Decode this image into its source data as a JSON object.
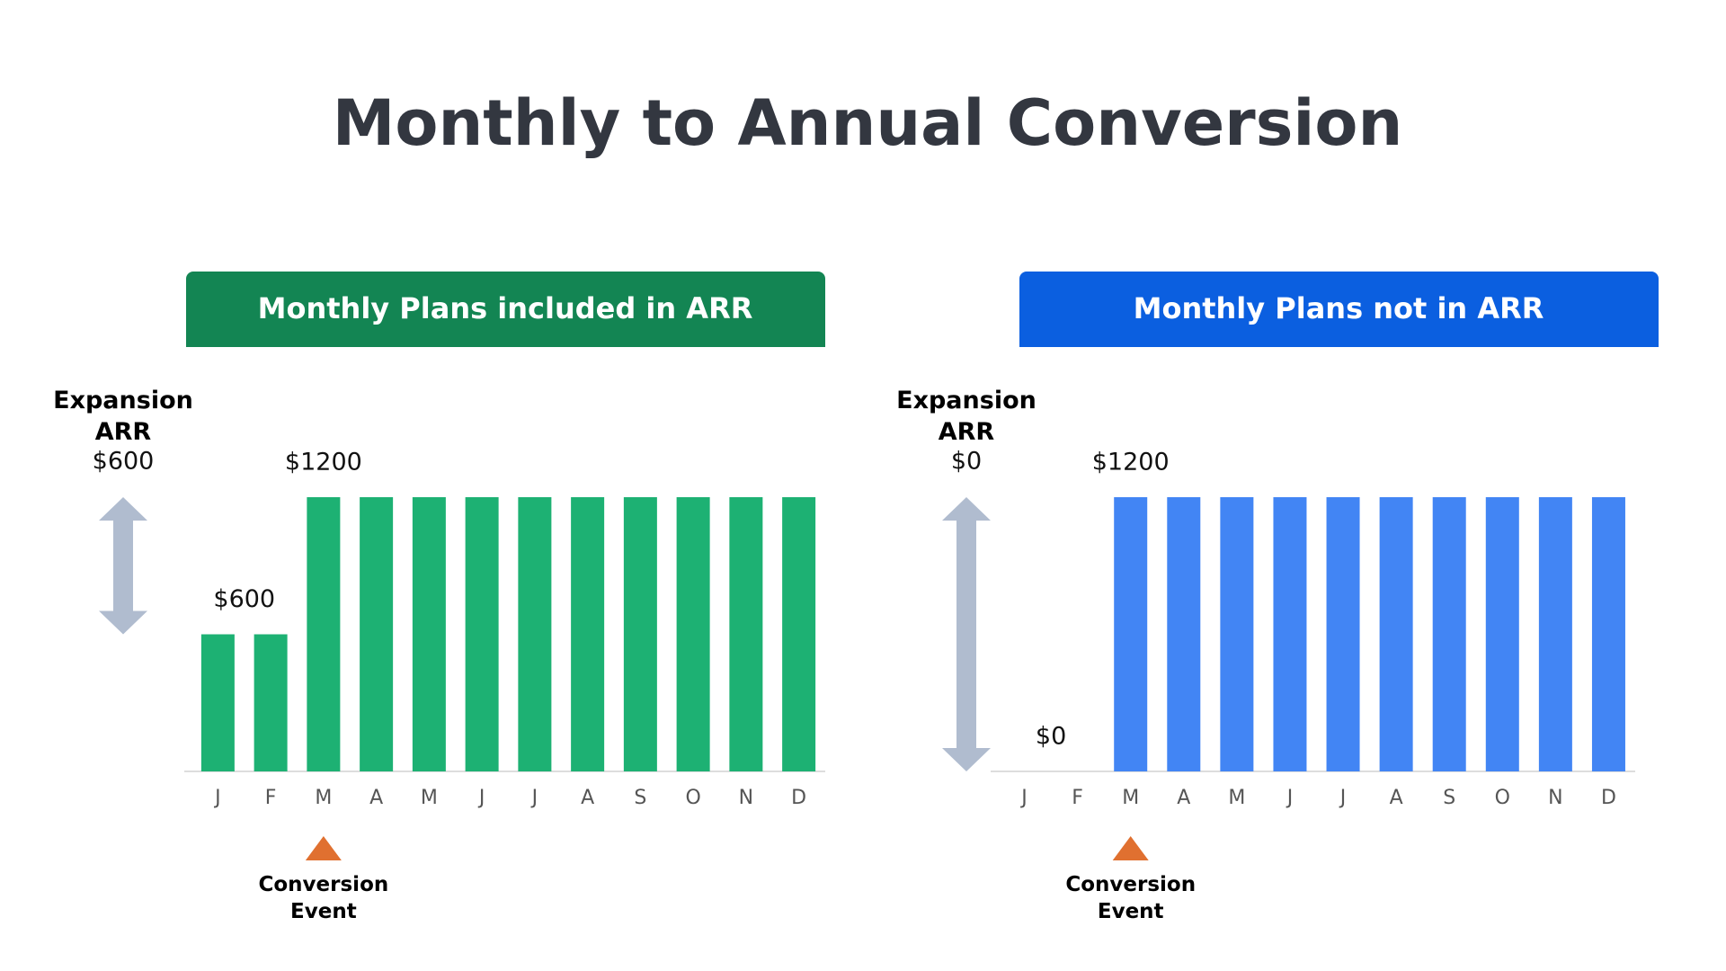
{
  "title": "Monthly to Annual Conversion",
  "chart_data": [
    {
      "type": "bar",
      "title": "Monthly Plans included in ARR",
      "header_color": "#138553",
      "color": "#1db173",
      "categories": [
        "J",
        "F",
        "M",
        "A",
        "M",
        "J",
        "J",
        "A",
        "S",
        "O",
        "N",
        "D"
      ],
      "values": [
        600,
        600,
        1200,
        1200,
        1200,
        1200,
        1200,
        1200,
        1200,
        1200,
        1200,
        1200
      ],
      "annotations": [
        {
          "label": "$600",
          "value": 600
        },
        {
          "label": "$1200",
          "value": 1200
        }
      ],
      "expansion": {
        "label": "Expansion ARR",
        "value": 600,
        "value_label": "$600"
      },
      "event_label": "Conversion Event"
    },
    {
      "type": "bar",
      "title": "Monthly Plans not in ARR",
      "header_color": "#0b5fe0",
      "color": "#4285f4",
      "categories": [
        "J",
        "F",
        "M",
        "A",
        "M",
        "J",
        "J",
        "A",
        "S",
        "O",
        "N",
        "D"
      ],
      "values": [
        0,
        0,
        1200,
        1200,
        1200,
        1200,
        1200,
        1200,
        1200,
        1200,
        1200,
        1200
      ],
      "annotations": [
        {
          "label": "$0",
          "value": 0
        },
        {
          "label": "$1200",
          "value": 1200
        }
      ],
      "expansion": {
        "label": "Expansion ARR",
        "value": 0,
        "value_label": "$0"
      },
      "event_label": "Conversion Event"
    }
  ]
}
